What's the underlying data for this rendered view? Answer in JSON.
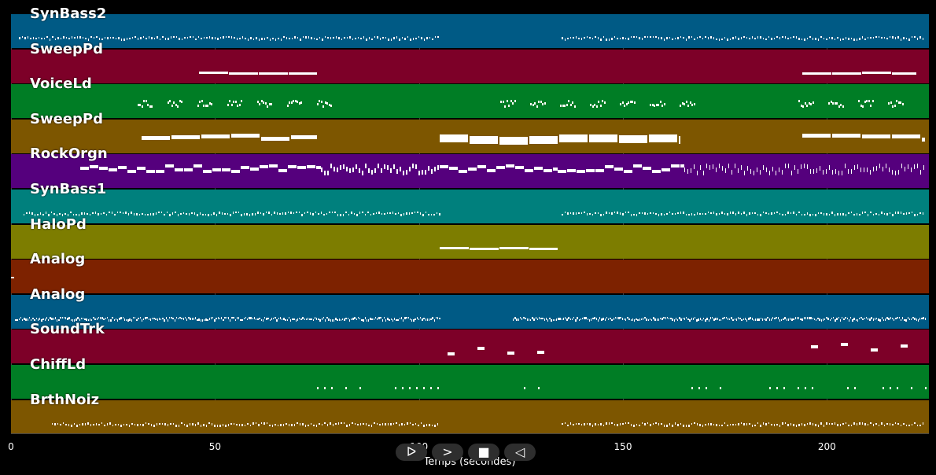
{
  "tracks": [
    {
      "name": "SynBass2",
      "color": "#005a85",
      "pattern": "dots",
      "segments": [
        [
          2,
          105
        ],
        [
          135,
          224
        ]
      ]
    },
    {
      "name": "SweepPd",
      "color": "#7d0028",
      "pattern": "bars",
      "segments": [
        [
          46,
          75
        ],
        [
          194,
          222
        ]
      ]
    },
    {
      "name": "VoiceLd",
      "color": "#007d25",
      "pattern": "clusters",
      "segments": [
        [
          31,
          76
        ],
        [
          120,
          165
        ],
        [
          193,
          220
        ]
      ]
    },
    {
      "name": "SweepPd",
      "color": "#7d5600",
      "pattern": "blocks",
      "segments": [
        [
          32,
          75
        ],
        [
          105,
          164
        ],
        [
          194,
          224
        ]
      ]
    },
    {
      "name": "RockOrgn",
      "color": "#55007d",
      "pattern": "mixed",
      "segments": [
        [
          17,
          76
        ],
        [
          76,
          105
        ],
        [
          105,
          134
        ],
        [
          134,
          165
        ],
        [
          165,
          224
        ]
      ]
    },
    {
      "name": "SynBass1",
      "color": "#00807d",
      "pattern": "dots",
      "segments": [
        [
          3,
          105
        ],
        [
          135,
          224
        ]
      ]
    },
    {
      "name": "HaloPd",
      "color": "#7d7d00",
      "pattern": "bars",
      "segments": [
        [
          105,
          134
        ]
      ]
    },
    {
      "name": "Analog",
      "color": "#7d2200",
      "pattern": "none",
      "segments": [
        [
          0,
          1
        ]
      ]
    },
    {
      "name": "Analog",
      "color": "#005a85",
      "pattern": "dense",
      "segments": [
        [
          1,
          105
        ],
        [
          123,
          224
        ]
      ]
    },
    {
      "name": "SoundTrk",
      "color": "#7d0028",
      "pattern": "sparse",
      "segments": [
        [
          107,
          131
        ],
        [
          196,
          220
        ]
      ]
    },
    {
      "name": "ChiffLd",
      "color": "#007d25",
      "pattern": "sparse-dots",
      "segments": [
        [
          75,
          105
        ],
        [
          124,
          134
        ],
        [
          165,
          224
        ]
      ]
    },
    {
      "name": "BrthNoiz",
      "color": "#7d5600",
      "pattern": "dots",
      "segments": [
        [
          10,
          105
        ],
        [
          135,
          224
        ]
      ]
    }
  ],
  "axis": {
    "xmin": 0,
    "xmax": 225,
    "ticks": [
      {
        "value": 0,
        "label": "0"
      },
      {
        "value": 50,
        "label": "50"
      },
      {
        "value": 100,
        "label": "100"
      },
      {
        "value": 150,
        "label": "150"
      },
      {
        "value": 200,
        "label": "200"
      }
    ],
    "xlabel": "Temps (secondes)"
  },
  "transport": [
    {
      "icon": "play-outline-icon",
      "glyph": "ᐅ"
    },
    {
      "icon": "forward-icon",
      "glyph": ">"
    },
    {
      "icon": "stop-icon",
      "glyph": "■"
    },
    {
      "icon": "rewind-icon",
      "glyph": "◁"
    }
  ]
}
